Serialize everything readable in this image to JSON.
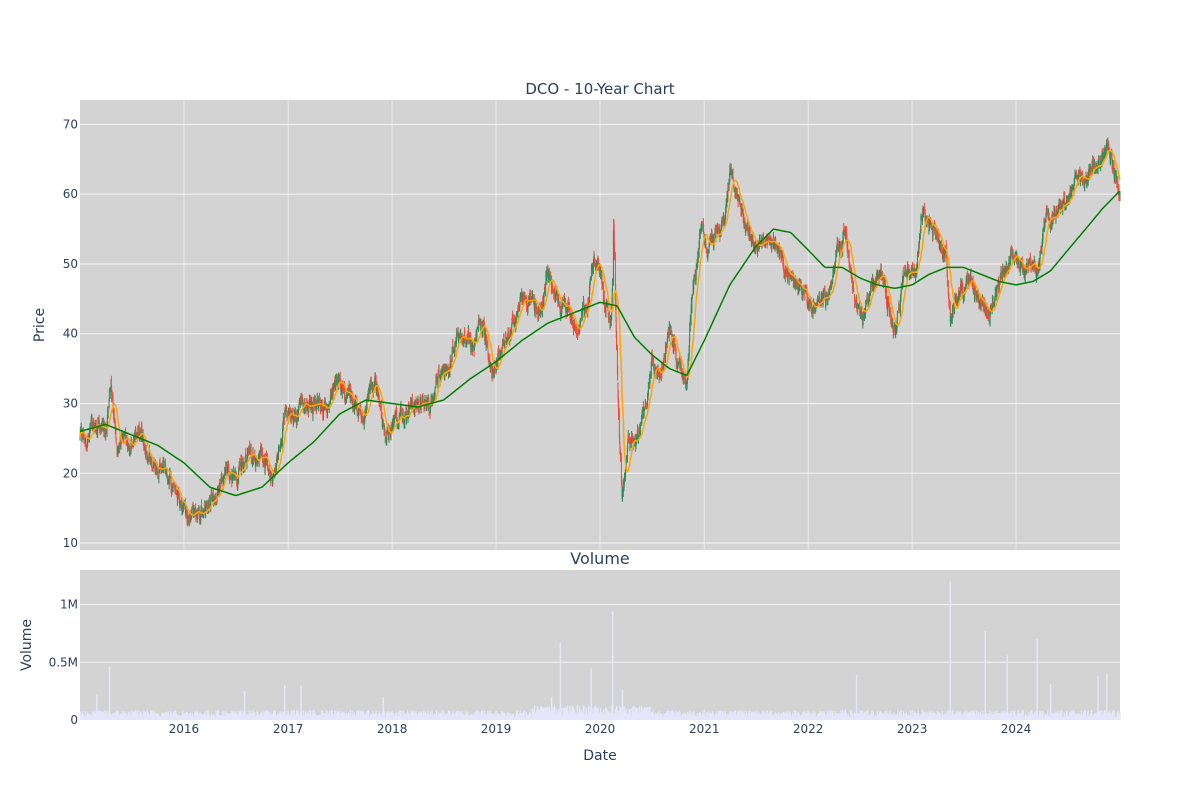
{
  "chart_data": [
    {
      "type": "candlestick",
      "title": "DCO - 10-Year Chart",
      "ylabel": "Price",
      "ylim": [
        9,
        73.5
      ],
      "xlim": [
        "2015-01-01",
        "2024-12-31"
      ],
      "grid": true,
      "legend": "none",
      "y_ticks": [
        10,
        20,
        30,
        40,
        50,
        60,
        70
      ],
      "x_ticks": [
        "2016",
        "2017",
        "2018",
        "2019",
        "2020",
        "2021",
        "2022",
        "2023",
        "2024"
      ],
      "colors": {
        "up": "#2e8b57",
        "down": "#ef4d3c",
        "ma_short": "#ffa500",
        "ma_long": "#008000",
        "plot_bg": "#d3d3d3"
      },
      "price_anchors": [
        [
          "2015-01-01",
          25.0
        ],
        [
          "2015-03-01",
          26.5
        ],
        [
          "2015-04-01",
          25.5
        ],
        [
          "2015-04-20",
          32.5
        ],
        [
          "2015-05-10",
          24.5
        ],
        [
          "2015-07-01",
          24.0
        ],
        [
          "2015-08-01",
          25.5
        ],
        [
          "2015-09-15",
          21.0
        ],
        [
          "2015-10-20",
          22.0
        ],
        [
          "2015-12-01",
          16.5
        ],
        [
          "2016-01-15",
          14.0
        ],
        [
          "2016-03-01",
          14.5
        ],
        [
          "2016-04-15",
          17.0
        ],
        [
          "2016-06-01",
          20.0
        ],
        [
          "2016-07-15",
          20.5
        ],
        [
          "2016-08-15",
          23.0
        ],
        [
          "2016-10-01",
          22.0
        ],
        [
          "2016-11-15",
          19.0
        ],
        [
          "2016-12-15",
          28.5
        ],
        [
          "2017-01-15",
          27.0
        ],
        [
          "2017-03-01",
          30.5
        ],
        [
          "2017-05-01",
          29.0
        ],
        [
          "2017-06-15",
          33.0
        ],
        [
          "2017-08-15",
          30.5
        ],
        [
          "2017-09-15",
          27.5
        ],
        [
          "2017-11-01",
          34.5
        ],
        [
          "2017-12-01",
          26.0
        ],
        [
          "2018-02-01",
          28.0
        ],
        [
          "2018-04-01",
          30.0
        ],
        [
          "2018-05-15",
          29.0
        ],
        [
          "2018-06-15",
          34.0
        ],
        [
          "2018-07-15",
          33.5
        ],
        [
          "2018-08-15",
          39.5
        ],
        [
          "2018-10-15",
          39.0
        ],
        [
          "2018-11-15",
          41.5
        ],
        [
          "2018-12-20",
          35.0
        ],
        [
          "2019-03-01",
          42.0
        ],
        [
          "2019-04-15",
          45.5
        ],
        [
          "2019-06-01",
          43.0
        ],
        [
          "2019-07-01",
          49.0
        ],
        [
          "2019-07-15",
          46.0
        ],
        [
          "2019-09-15",
          42.5
        ],
        [
          "2019-10-15",
          41.0
        ],
        [
          "2019-11-15",
          44.0
        ],
        [
          "2019-12-01",
          48.5
        ],
        [
          "2020-01-01",
          50.0
        ],
        [
          "2020-01-20",
          43.0
        ],
        [
          "2020-02-10",
          42.5
        ],
        [
          "2020-02-18",
          56.0
        ],
        [
          "2020-03-05",
          30.0
        ],
        [
          "2020-03-18",
          17.5
        ],
        [
          "2020-04-10",
          24.0
        ],
        [
          "2020-05-15",
          25.0
        ],
        [
          "2020-07-01",
          35.0
        ],
        [
          "2020-08-01",
          33.0
        ],
        [
          "2020-09-01",
          41.5
        ],
        [
          "2020-10-01",
          36.0
        ],
        [
          "2020-11-01",
          34.0
        ],
        [
          "2020-11-15",
          43.0
        ],
        [
          "2020-12-20",
          55.0
        ],
        [
          "2021-01-15",
          53.0
        ],
        [
          "2021-03-15",
          56.0
        ],
        [
          "2021-04-01",
          64.0
        ],
        [
          "2021-05-15",
          58.0
        ],
        [
          "2021-06-15",
          53.0
        ],
        [
          "2021-08-15",
          54.0
        ],
        [
          "2021-10-15",
          50.0
        ],
        [
          "2021-12-15",
          46.0
        ],
        [
          "2022-01-15",
          43.0
        ],
        [
          "2022-03-15",
          46.0
        ],
        [
          "2022-04-15",
          51.5
        ],
        [
          "2022-05-15",
          54.0
        ],
        [
          "2022-06-15",
          44.0
        ],
        [
          "2022-07-15",
          42.5
        ],
        [
          "2022-08-15",
          46.0
        ],
        [
          "2022-09-15",
          48.0
        ],
        [
          "2022-11-01",
          40.5
        ],
        [
          "2022-12-15",
          51.0
        ],
        [
          "2023-01-15",
          49.0
        ],
        [
          "2023-02-01",
          56.5
        ],
        [
          "2023-03-15",
          55.5
        ],
        [
          "2023-05-01",
          51.0
        ],
        [
          "2023-05-15",
          41.5
        ],
        [
          "2023-06-15",
          44.5
        ],
        [
          "2023-07-15",
          48.0
        ],
        [
          "2023-09-01",
          44.0
        ],
        [
          "2023-10-01",
          43.0
        ],
        [
          "2023-11-15",
          48.5
        ],
        [
          "2023-12-15",
          51.0
        ],
        [
          "2024-02-15",
          50.0
        ],
        [
          "2024-03-15",
          49.5
        ],
        [
          "2024-04-15",
          56.0
        ],
        [
          "2024-06-15",
          58.0
        ],
        [
          "2024-08-01",
          62.0
        ],
        [
          "2024-09-15",
          64.0
        ],
        [
          "2024-10-15",
          64.5
        ],
        [
          "2024-11-15",
          66.0
        ],
        [
          "2024-12-31",
          61.0
        ]
      ],
      "moving_average_long": [
        [
          "2015-01-01",
          26.0
        ],
        [
          "2015-04-01",
          27.0
        ],
        [
          "2015-07-01",
          25.5
        ],
        [
          "2015-10-01",
          24.0
        ],
        [
          "2016-01-01",
          21.5
        ],
        [
          "2016-04-01",
          18.0
        ],
        [
          "2016-07-01",
          16.8
        ],
        [
          "2016-10-01",
          18.0
        ],
        [
          "2017-01-01",
          21.5
        ],
        [
          "2017-04-01",
          24.5
        ],
        [
          "2017-07-01",
          28.5
        ],
        [
          "2017-10-01",
          30.5
        ],
        [
          "2018-01-01",
          30.0
        ],
        [
          "2018-04-01",
          29.5
        ],
        [
          "2018-07-01",
          30.5
        ],
        [
          "2018-10-01",
          33.5
        ],
        [
          "2019-01-01",
          36.0
        ],
        [
          "2019-04-01",
          39.0
        ],
        [
          "2019-07-01",
          41.5
        ],
        [
          "2019-10-01",
          43.0
        ],
        [
          "2020-01-01",
          44.5
        ],
        [
          "2020-03-01",
          44.0
        ],
        [
          "2020-05-01",
          39.5
        ],
        [
          "2020-07-01",
          37.0
        ],
        [
          "2020-09-01",
          35.0
        ],
        [
          "2020-11-01",
          34.0
        ],
        [
          "2021-01-01",
          39.0
        ],
        [
          "2021-04-01",
          47.0
        ],
        [
          "2021-07-01",
          52.5
        ],
        [
          "2021-09-01",
          55.0
        ],
        [
          "2021-11-01",
          54.5
        ],
        [
          "2022-01-01",
          52.0
        ],
        [
          "2022-03-01",
          49.5
        ],
        [
          "2022-05-01",
          49.5
        ],
        [
          "2022-07-01",
          48.0
        ],
        [
          "2022-09-01",
          47.0
        ],
        [
          "2022-11-01",
          46.5
        ],
        [
          "2023-01-01",
          47.0
        ],
        [
          "2023-03-01",
          48.5
        ],
        [
          "2023-05-01",
          49.5
        ],
        [
          "2023-07-01",
          49.5
        ],
        [
          "2023-09-01",
          48.5
        ],
        [
          "2023-11-01",
          47.5
        ],
        [
          "2024-01-01",
          47.0
        ],
        [
          "2024-03-01",
          47.5
        ],
        [
          "2024-05-01",
          49.0
        ],
        [
          "2024-07-01",
          52.0
        ],
        [
          "2024-09-01",
          55.0
        ],
        [
          "2024-11-01",
          58.0
        ],
        [
          "2024-12-31",
          60.5
        ]
      ]
    },
    {
      "type": "bar",
      "title": "Volume",
      "xlabel": "Date",
      "ylabel": "Volume",
      "ylim": [
        0,
        1300000
      ],
      "y_ticks": [
        0,
        500000,
        1000000
      ],
      "y_tick_labels": [
        "0",
        "0.5M",
        "1M"
      ],
      "x_ticks": [
        "2016",
        "2017",
        "2018",
        "2019",
        "2020",
        "2021",
        "2022",
        "2023",
        "2024"
      ],
      "bar_color": "#e6e6fa",
      "baseline_volume": 60000,
      "spikes": [
        [
          "2015-04-15",
          460000
        ],
        [
          "2015-03-01",
          220000
        ],
        [
          "2016-08-01",
          250000
        ],
        [
          "2016-12-20",
          300000
        ],
        [
          "2017-02-15",
          300000
        ],
        [
          "2017-12-01",
          200000
        ],
        [
          "2019-07-15",
          200000
        ],
        [
          "2019-08-15",
          670000
        ],
        [
          "2019-12-01",
          450000
        ],
        [
          "2020-02-15",
          940000
        ],
        [
          "2020-03-20",
          260000
        ],
        [
          "2022-06-20",
          390000
        ],
        [
          "2023-05-15",
          1200000
        ],
        [
          "2023-09-15",
          770000
        ],
        [
          "2023-12-01",
          560000
        ],
        [
          "2024-03-15",
          700000
        ],
        [
          "2024-05-01",
          310000
        ],
        [
          "2024-10-15",
          380000
        ],
        [
          "2024-11-15",
          410000
        ]
      ]
    }
  ]
}
